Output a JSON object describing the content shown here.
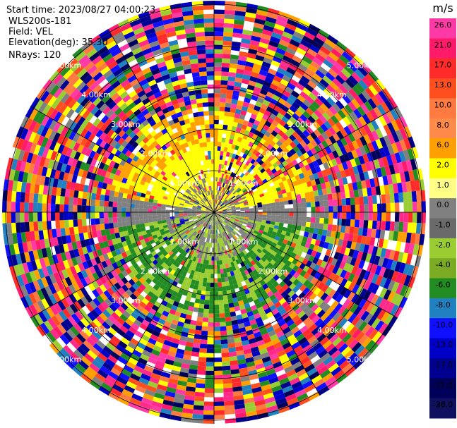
{
  "info": {
    "start_time": "Start time: 2023/08/27 04:00:23",
    "instrument": "WLS200s-181",
    "field": "Field: VEL",
    "elevation": "Elevation(deg): 35.30",
    "nrays": "NRays: 120"
  },
  "range_labels": {
    "r1": "1.00km",
    "r2": "2.00km",
    "r3": "3.00km",
    "r4": "4.00km",
    "r5": "5.00km"
  },
  "colorbar": {
    "unit": "m/s",
    "ticks": [
      "26.0",
      "21.0",
      "17.0",
      "13.0",
      "10.0",
      "8.0",
      "6.0",
      "2.0",
      "1.0",
      "0.0",
      "-1.0",
      "-2.0",
      "-4.0",
      "-6.0",
      "-8.0",
      "-10.0",
      "-13.0",
      "-17.0",
      "-21.0",
      "-26.0",
      "-30.0"
    ],
    "colors": [
      "#ff3aa6",
      "#ff1a6a",
      "#ff2a2a",
      "#ff4f1f",
      "#ff7a40",
      "#ff8a4a",
      "#ffa000",
      "#ffff00",
      "#ffff88",
      "#808080",
      "#6a6a6a",
      "#9acd32",
      "#7aab22",
      "#228b22",
      "#2080c0",
      "#1010ff",
      "#0000c8",
      "#000090",
      "#00005a",
      "#101060"
    ]
  },
  "ppi": {
    "field": "VEL",
    "nrays": 120,
    "elevation_deg": 35.3,
    "range_rings_km": [
      1,
      2,
      3,
      4,
      5
    ]
  }
}
